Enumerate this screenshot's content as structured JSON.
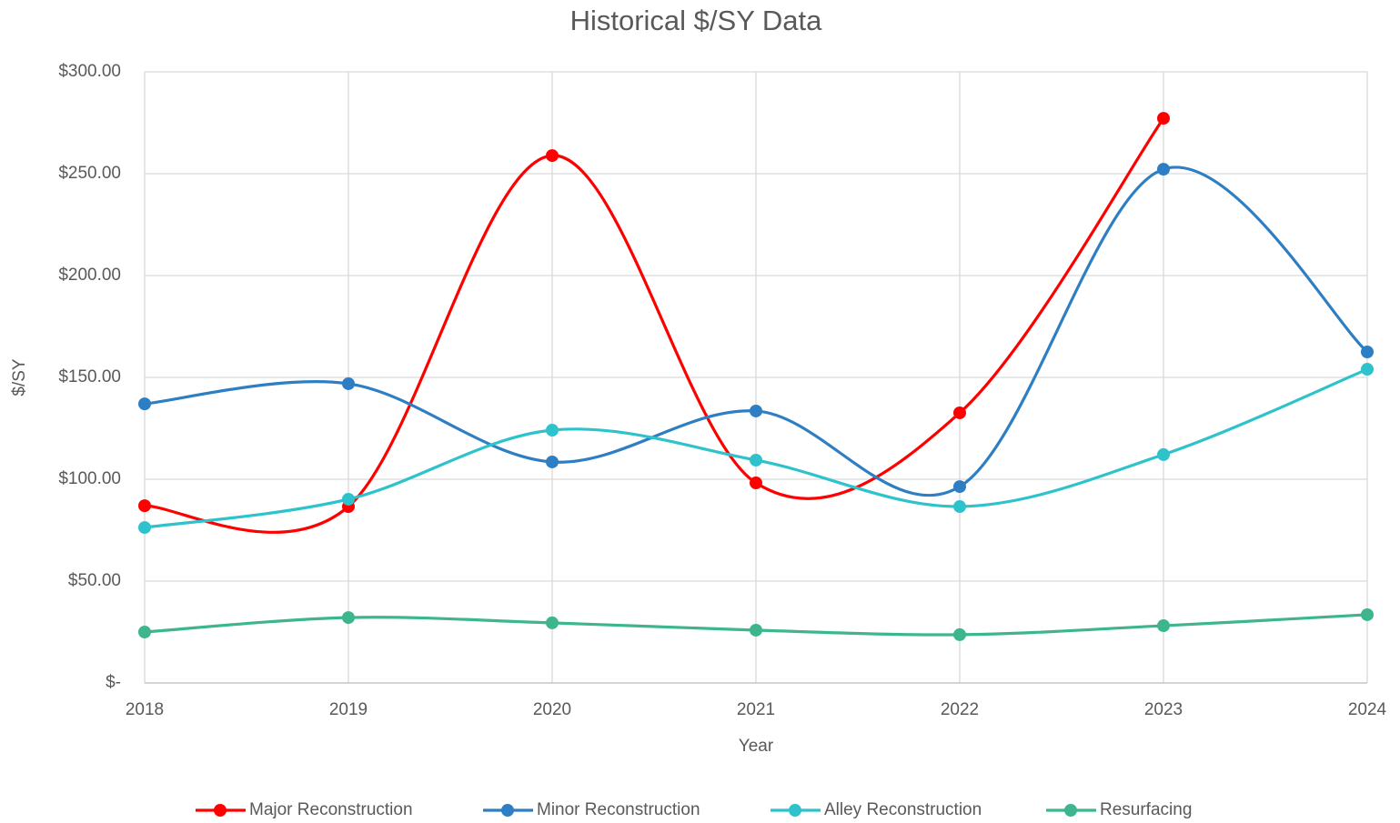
{
  "chart_data": {
    "type": "line",
    "title": "Historical $/SY Data",
    "x_label": "Year",
    "y_label": "$/SY",
    "categories": [
      "2018",
      "2019",
      "2020",
      "2021",
      "2022",
      "2023",
      "2024"
    ],
    "series": [
      {
        "name": "Major Reconstruction",
        "color": "#ff0000",
        "values": [
          87,
          86.6,
          258.9,
          98.2,
          132.6,
          277.2,
          null
        ]
      },
      {
        "name": "Minor Reconstruction",
        "color": "#2e7ec3",
        "values": [
          137,
          146.9,
          108.5,
          133.5,
          96.4,
          252.2,
          162.5
        ]
      },
      {
        "name": "Alley Reconstruction",
        "color": "#2ec3cc",
        "values": [
          76.3,
          90.2,
          124.1,
          109.4,
          86.6,
          112.1,
          154
        ]
      },
      {
        "name": "Resurfacing",
        "color": "#3db58e",
        "values": [
          25,
          32.1,
          29.5,
          25.9,
          23.7,
          28.1,
          33.5
        ]
      }
    ],
    "ylim": [
      0,
      300
    ],
    "yticks": [
      {
        "value": 0,
        "label": "$-"
      },
      {
        "value": 50,
        "label": "$50.00"
      },
      {
        "value": 100,
        "label": "$100.00"
      },
      {
        "value": 150,
        "label": "$150.00"
      },
      {
        "value": 200,
        "label": "$200.00"
      },
      {
        "value": 250,
        "label": "$250.00"
      },
      {
        "value": 300,
        "label": "$300.00"
      }
    ],
    "grid": true,
    "smooth": true,
    "legend": "bottom"
  }
}
